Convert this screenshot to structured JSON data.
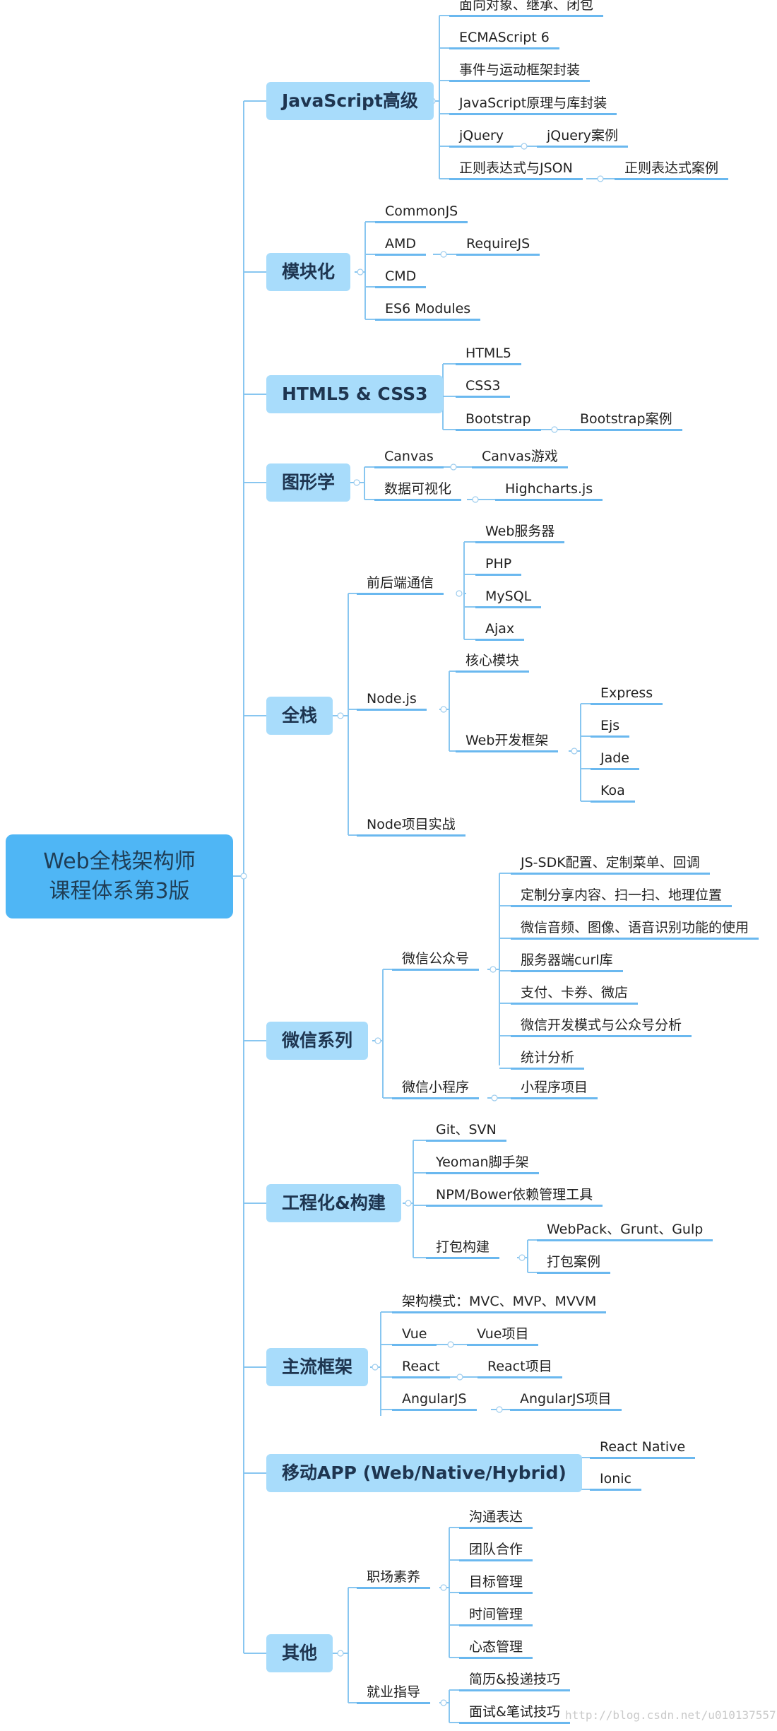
{
  "root": {
    "line1": "Web全栈架构师",
    "line2": "课程体系第3版"
  },
  "categories": {
    "js": "JavaScript高级",
    "module": "模块化",
    "html5": "HTML5 & CSS3",
    "graphics": "图形学",
    "fullstack": "全栈",
    "wechat": "微信系列",
    "engineering": "工程化&构建",
    "frameworks": "主流框架",
    "mobile": "移动APP (Web/Native/Hybrid)",
    "other": "其他"
  },
  "nodes": {
    "js_oop": "面向对象、继承、闭包",
    "js_es6": "ECMAScript 6",
    "js_events": "事件与运动框架封装",
    "js_lib": "JavaScript原理与库封装",
    "js_jquery": "jQuery",
    "js_jquery_case": "jQuery案例",
    "js_regex": "正则表达式与JSON",
    "js_regex_case": "正则表达式案例",
    "mod_commonjs": "CommonJS",
    "mod_amd": "AMD",
    "mod_requirejs": "RequireJS",
    "mod_cmd": "CMD",
    "mod_es6": "ES6 Modules",
    "h5_html5": "HTML5",
    "h5_css3": "CSS3",
    "h5_bootstrap": "Bootstrap",
    "h5_bootstrap_case": "Bootstrap案例",
    "g_canvas": "Canvas",
    "g_canvas_game": "Canvas游戏",
    "g_dataviz": "数据可视化",
    "g_highcharts": "Highcharts.js",
    "fs_comm": "前后端通信",
    "fs_webserver": "Web服务器",
    "fs_php": "PHP",
    "fs_mysql": "MySQL",
    "fs_ajax": "Ajax",
    "fs_node": "Node.js",
    "fs_core": "核心模块",
    "fs_webfw": "Web开发框架",
    "fs_express": "Express",
    "fs_ejs": "Ejs",
    "fs_jade": "Jade",
    "fs_koa": "Koa",
    "fs_nodeproj": "Node项目实战",
    "wx_public": "微信公众号",
    "wx_sdk": "JS-SDK配置、定制菜单、回调",
    "wx_share": "定制分享内容、扫一扫、地理位置",
    "wx_media": "微信音频、图像、语音识别功能的使用",
    "wx_curl": "服务器端curl库",
    "wx_pay": "支付、卡券、微店",
    "wx_mode": "微信开发模式与公众号分析",
    "wx_stats": "统计分析",
    "wx_mini": "微信小程序",
    "wx_mini_proj": "小程序项目",
    "eng_git": "Git、SVN",
    "eng_yeoman": "Yeoman脚手架",
    "eng_npm": "NPM/Bower依赖管理工具",
    "eng_pack": "打包构建",
    "eng_webpack": "WebPack、Grunt、Gulp",
    "eng_pack_case": "打包案例",
    "fw_mvc": "架构模式：MVC、MVP、MVVM",
    "fw_vue": "Vue",
    "fw_vue_proj": "Vue项目",
    "fw_react": "React",
    "fw_react_proj": "React项目",
    "fw_angular": "AngularJS",
    "fw_angular_proj": "AngularJS项目",
    "mob_rn": "React Native",
    "mob_ionic": "Ionic",
    "ot_career": "职场素养",
    "ot_comm": "沟通表达",
    "ot_team": "团队合作",
    "ot_goal": "目标管理",
    "ot_time": "时间管理",
    "ot_mind": "心态管理",
    "ot_job": "就业指导",
    "ot_resume": "简历&投递技巧",
    "ot_interview": "面试&笔试技巧"
  },
  "watermark": "http://blog.csdn.net/u010137557",
  "colors": {
    "root_fill": "#4fb6f5",
    "category_fill": "#a8dcfb",
    "connector": "#6ab8ef"
  }
}
